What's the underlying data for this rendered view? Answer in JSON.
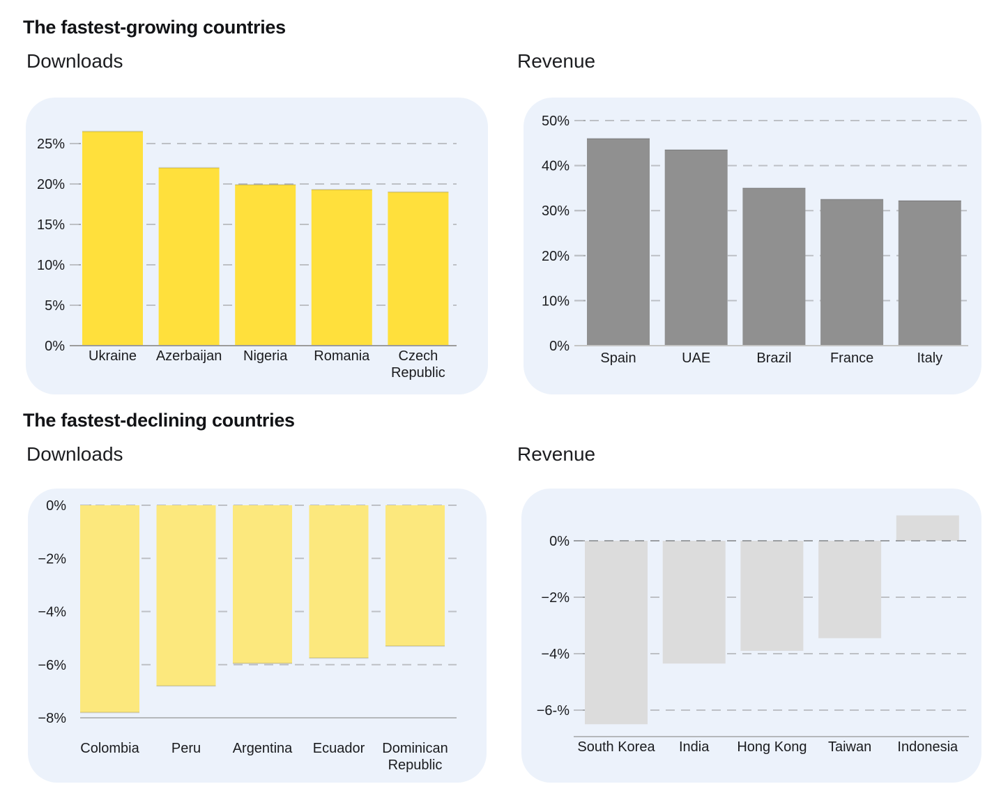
{
  "page": {
    "background": "#FFFFFF"
  },
  "colors": {
    "page_bg": "#FFFFFF",
    "panel_bg": "#ECF2FB",
    "title_text": "#121316",
    "subtitle_text": "#1C1D20",
    "axis_text": "#1A1B1E",
    "grid_dash": "#BDC0C5",
    "tick_mark": "#A7AAAE",
    "axis_solid": "#9B9B9B",
    "growing_downloads_bar": "#FFE03C",
    "growing_revenue_bar": "#909090",
    "declining_downloads_bar": "#FCE87D",
    "declining_revenue_bar": "#DCDCDC"
  },
  "sections": [
    {
      "title": "The fastest-growing countries"
    },
    {
      "title": "The fastest-declining countries"
    }
  ],
  "chart_data": [
    {
      "id": "growing_downloads",
      "type": "bar",
      "title": "Downloads",
      "xlabel": "",
      "ylabel": "",
      "bar_color": "#FFE03C",
      "bar_edge": true,
      "grid": "horizontal-dashed",
      "legend": "none",
      "categories": [
        "Ukraine",
        "Azerbaijan",
        "Nigeria",
        "Romania",
        "Czech\nRepublic"
      ],
      "values": [
        26.5,
        22.0,
        19.9,
        19.3,
        19.0
      ],
      "ylim": [
        0,
        27.5
      ],
      "yticks": [
        {
          "value": 0,
          "label": "0%",
          "line": "solid",
          "front": true,
          "color": "#9B9B9B"
        },
        {
          "value": 5,
          "label": "5%",
          "line": "dashed"
        },
        {
          "value": 10,
          "label": "10%",
          "line": "dashed"
        },
        {
          "value": 15,
          "label": "15%",
          "line": "dashed"
        },
        {
          "value": 20,
          "label": "20%",
          "line": "dashed"
        },
        {
          "value": 25,
          "label": "25%",
          "line": "dashed"
        }
      ]
    },
    {
      "id": "growing_revenue",
      "type": "bar",
      "title": "Revenue",
      "xlabel": "",
      "ylabel": "",
      "bar_color": "#909090",
      "bar_edge": true,
      "grid": "horizontal-dashed",
      "legend": "none",
      "categories": [
        "Spain",
        "UAE",
        "Brazil",
        "France",
        "Italy"
      ],
      "values": [
        46.0,
        43.5,
        35.0,
        32.5,
        32.2
      ],
      "ylim": [
        0,
        52
      ],
      "yticks": [
        {
          "value": 0,
          "label": "0%",
          "line": "solid",
          "front": true,
          "color": "#C4C4C4"
        },
        {
          "value": 10,
          "label": "10%",
          "line": "dashed"
        },
        {
          "value": 20,
          "label": "20%",
          "line": "dashed"
        },
        {
          "value": 30,
          "label": "30%",
          "line": "dashed"
        },
        {
          "value": 40,
          "label": "40%",
          "line": "dashed"
        },
        {
          "value": 50,
          "label": "50%",
          "line": "dashed"
        }
      ]
    },
    {
      "id": "declining_downloads",
      "type": "bar",
      "title": "Downloads",
      "xlabel": "",
      "ylabel": "",
      "bar_color": "#FCE87D",
      "bar_edge": true,
      "grid": "horizontal-dashed",
      "legend": "none",
      "categories": [
        "Colombia",
        "Peru",
        "Argentina",
        "Ecuador",
        "Dominican\nRepublic"
      ],
      "values": [
        -7.8,
        -6.8,
        -5.95,
        -5.75,
        -5.3
      ],
      "ylim": [
        -8.6,
        0.6
      ],
      "yticks": [
        {
          "value": 0,
          "label": "0%",
          "line": "dashed"
        },
        {
          "value": -2,
          "label": "−2%",
          "line": "dashed"
        },
        {
          "value": -4,
          "label": "−4%",
          "line": "dashed"
        },
        {
          "value": -6,
          "label": "−6%",
          "line": "dashed"
        },
        {
          "value": -8,
          "label": "−8%",
          "line": "solid",
          "color": "#B5B8BB"
        }
      ]
    },
    {
      "id": "declining_revenue",
      "type": "bar",
      "title": "Revenue",
      "xlabel": "",
      "ylabel": "",
      "bar_color": "#DCDCDC",
      "bar_edge": false,
      "grid": "horizontal-dashed",
      "legend": "none",
      "categories": [
        "South Korea",
        "India",
        "Hong Kong",
        "Taiwan",
        "Indonesia"
      ],
      "values": [
        -6.5,
        -4.35,
        -3.9,
        -3.45,
        0.9
      ],
      "ylim": [
        -6.94,
        1.85
      ],
      "yticks": [
        {
          "value": 0,
          "label": "0%",
          "line": "dashed",
          "front": true,
          "color": "#9A9DA1"
        },
        {
          "value": -2,
          "label": "−2%",
          "line": "dashed"
        },
        {
          "value": -4,
          "label": "−4%",
          "line": "dashed"
        },
        {
          "value": -6,
          "label": "−6-%",
          "line": "dashed"
        }
      ]
    }
  ]
}
